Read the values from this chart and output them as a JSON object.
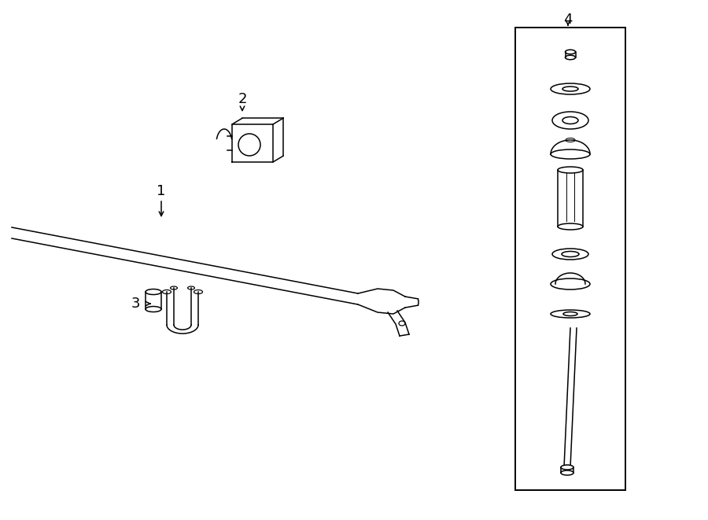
{
  "bg_color": "#ffffff",
  "line_color": "#000000",
  "figure_width": 9.0,
  "figure_height": 6.61,
  "dpi": 100
}
